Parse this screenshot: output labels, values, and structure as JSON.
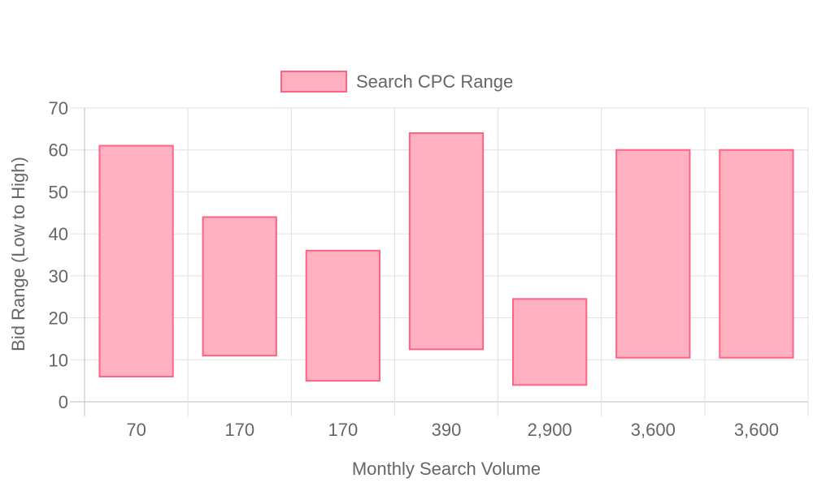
{
  "chart_data": {
    "type": "bar",
    "subtype": "floating-range",
    "categories": [
      "70",
      "170",
      "170",
      "390",
      "2,900",
      "3,600",
      "3,600"
    ],
    "series": [
      {
        "name": "Search CPC Range",
        "ranges": [
          [
            6,
            61
          ],
          [
            11,
            44
          ],
          [
            5,
            36
          ],
          [
            12.5,
            64
          ],
          [
            4,
            24.5
          ],
          [
            10.5,
            60
          ],
          [
            10.5,
            60
          ]
        ],
        "fill_color": "#ffb1c1",
        "border_color": "#ff6384"
      }
    ],
    "xlabel": "Monthly Search Volume",
    "ylabel": "Bid Range (Low to High)",
    "ylim": [
      0,
      70
    ],
    "yticks": [
      "0",
      "10",
      "20",
      "30",
      "40",
      "50",
      "60",
      "70"
    ],
    "grid": true,
    "legend_position": "top-center"
  }
}
